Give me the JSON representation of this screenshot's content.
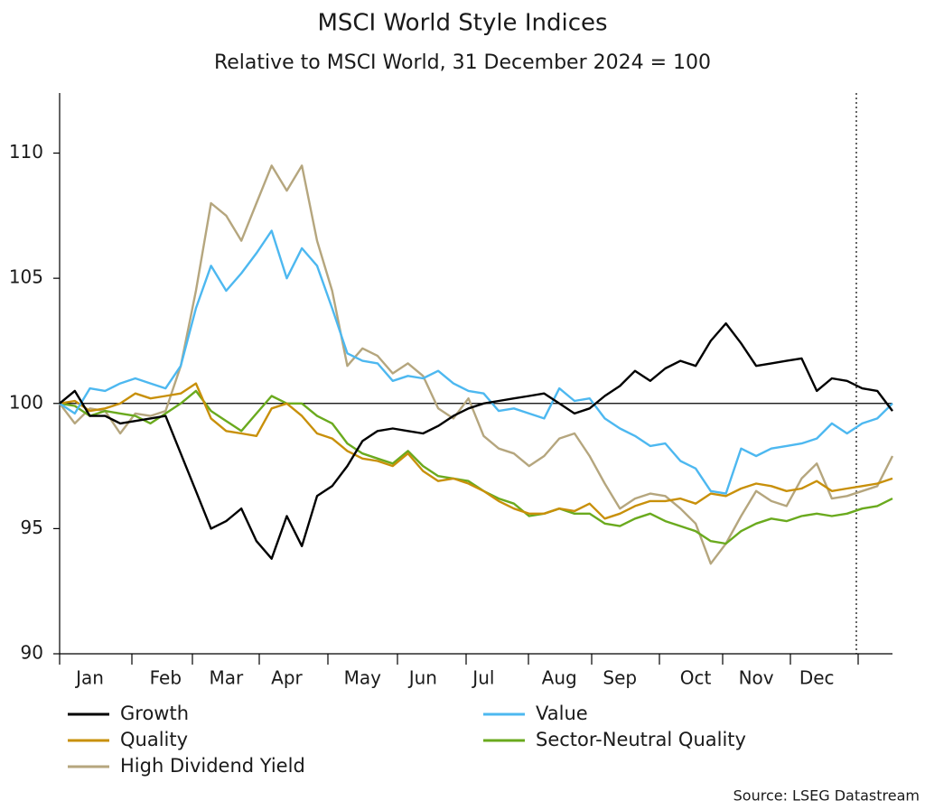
{
  "chart_data": {
    "type": "line",
    "title": "MSCI World Style Indices",
    "subtitle": "Relative to MSCI World, 31 December 2024 = 100",
    "source": "Source: LSEG Datastream",
    "categories": [
      null,
      null,
      "Jan",
      null,
      null,
      null,
      null,
      "Feb",
      null,
      null,
      null,
      "Mar",
      null,
      null,
      null,
      "Apr",
      null,
      null,
      null,
      null,
      "May",
      null,
      null,
      null,
      "Jun",
      null,
      null,
      null,
      "Jul",
      null,
      null,
      null,
      null,
      "Aug",
      null,
      null,
      null,
      "Sep",
      null,
      null,
      null,
      null,
      "Oct",
      null,
      null,
      null,
      "Nov",
      null,
      null,
      null,
      "Dec",
      null,
      null,
      null,
      null,
      null
    ],
    "ylim": [
      90,
      112.4
    ],
    "yticks": [
      90,
      95,
      100,
      105,
      110
    ],
    "hline": 100,
    "series": [
      {
        "name": "Growth",
        "color": "#000000",
        "values": [
          100,
          100.5,
          99.5,
          99.5,
          99.2,
          99.3,
          99.4,
          99.5,
          98,
          96.5,
          95,
          95.3,
          95.8,
          94.5,
          93.8,
          95.5,
          94.3,
          96.3,
          96.7,
          97.5,
          98.5,
          98.9,
          99,
          98.9,
          98.8,
          99.1,
          99.5,
          99.8,
          100,
          100.1,
          100.2,
          100.3,
          100.4,
          100,
          99.6,
          99.8,
          100.3,
          100.7,
          101.3,
          100.9,
          101.4,
          101.7,
          101.5,
          102.5,
          103.2,
          102.4,
          101.5,
          101.6,
          101.7,
          101.8,
          100.5,
          101,
          100.9,
          100.6,
          100.5,
          99.7
        ]
      },
      {
        "name": "Value",
        "color": "#4db8f0",
        "values": [
          100,
          99.6,
          100.6,
          100.5,
          100.8,
          101,
          100.8,
          100.6,
          101.5,
          103.8,
          105.5,
          104.5,
          105.2,
          106,
          106.9,
          105,
          106.2,
          105.5,
          103.8,
          102,
          101.7,
          101.6,
          100.9,
          101.1,
          101,
          101.3,
          100.8,
          100.5,
          100.4,
          99.7,
          99.8,
          99.6,
          99.4,
          100.6,
          100.1,
          100.2,
          99.4,
          99,
          98.7,
          98.3,
          98.4,
          97.7,
          97.4,
          96.5,
          96.4,
          98.2,
          97.9,
          98.2,
          98.3,
          98.4,
          98.6,
          99.2,
          98.8,
          99.2,
          99.4,
          100
        ]
      },
      {
        "name": "Quality",
        "color": "#c8900a",
        "values": [
          100,
          100.1,
          99.7,
          99.8,
          100,
          100.4,
          100.2,
          100.3,
          100.4,
          100.8,
          99.4,
          98.9,
          98.8,
          98.7,
          99.8,
          100,
          99.5,
          98.8,
          98.6,
          98.1,
          97.8,
          97.7,
          97.5,
          98,
          97.3,
          96.9,
          97,
          96.8,
          96.5,
          96.1,
          95.8,
          95.6,
          95.6,
          95.8,
          95.7,
          96,
          95.4,
          95.6,
          95.9,
          96.1,
          96.1,
          96.2,
          96,
          96.4,
          96.3,
          96.6,
          96.8,
          96.7,
          96.5,
          96.6,
          96.9,
          96.5,
          96.6,
          96.7,
          96.8,
          97
        ]
      },
      {
        "name": "Sector-Neutral Quality",
        "color": "#6aaa1e",
        "values": [
          100,
          99.9,
          99.5,
          99.7,
          99.6,
          99.5,
          99.2,
          99.6,
          100,
          100.5,
          99.7,
          99.3,
          98.9,
          99.6,
          100.3,
          100,
          100,
          99.5,
          99.2,
          98.4,
          98,
          97.8,
          97.6,
          98.1,
          97.5,
          97.1,
          97,
          96.9,
          96.5,
          96.2,
          96,
          95.5,
          95.6,
          95.8,
          95.6,
          95.6,
          95.2,
          95.1,
          95.4,
          95.6,
          95.3,
          95.1,
          94.9,
          94.5,
          94.4,
          94.9,
          95.2,
          95.4,
          95.3,
          95.5,
          95.6,
          95.5,
          95.6,
          95.8,
          95.9,
          96.2
        ]
      },
      {
        "name": "High Dividend Yield",
        "color": "#b5a67e",
        "values": [
          100,
          99.2,
          99.8,
          99.7,
          98.8,
          99.6,
          99.5,
          99.7,
          101.5,
          104.5,
          108,
          107.5,
          106.5,
          108,
          109.5,
          108.5,
          109.5,
          106.5,
          104.5,
          101.5,
          102.2,
          101.9,
          101.2,
          101.6,
          101.1,
          99.8,
          99.4,
          100.2,
          98.7,
          98.2,
          98,
          97.5,
          97.9,
          98.6,
          98.8,
          97.9,
          96.8,
          95.8,
          96.2,
          96.4,
          96.3,
          95.8,
          95.2,
          93.6,
          94.4,
          95.5,
          96.5,
          96.1,
          95.9,
          97,
          97.6,
          96.2,
          96.3,
          96.5,
          96.7,
          97.9
        ]
      }
    ]
  }
}
